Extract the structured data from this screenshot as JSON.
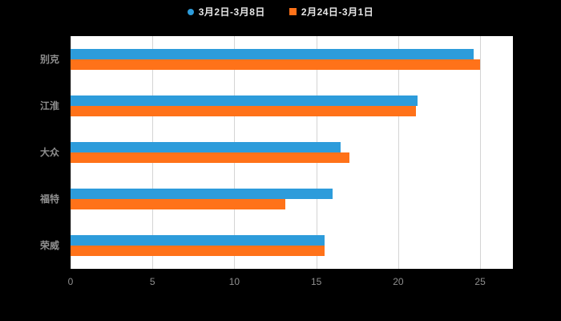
{
  "legend": {
    "series1": "3月2日-3月8日",
    "series2": "2月24日-3月1日"
  },
  "colors": {
    "series1": "#2d9cdb",
    "series2": "#ff7219",
    "page_bg": "#000000",
    "plot_bg": "#ffffff",
    "grid": "#d4d4d4",
    "axis_text": "#8f8f8f",
    "legend_text": "#e6e6e6"
  },
  "chart_data": {
    "type": "bar",
    "orientation": "horizontal",
    "title": "",
    "xlabel": "",
    "ylabel": "",
    "categories": [
      "别克",
      "江淮",
      "大众",
      "福特",
      "荣威"
    ],
    "series": [
      {
        "name": "3月2日-3月8日",
        "color": "#2d9cdb",
        "values": [
          24.6,
          21.2,
          16.5,
          16.0,
          15.5
        ]
      },
      {
        "name": "2月24日-3月1日",
        "color": "#ff7219",
        "values": [
          25.0,
          21.1,
          17.0,
          13.1,
          15.5
        ]
      }
    ],
    "xticks": [
      0,
      5,
      10,
      15,
      20,
      25
    ],
    "xlim": [
      0,
      27
    ],
    "grid": true,
    "legend_position": "top"
  }
}
